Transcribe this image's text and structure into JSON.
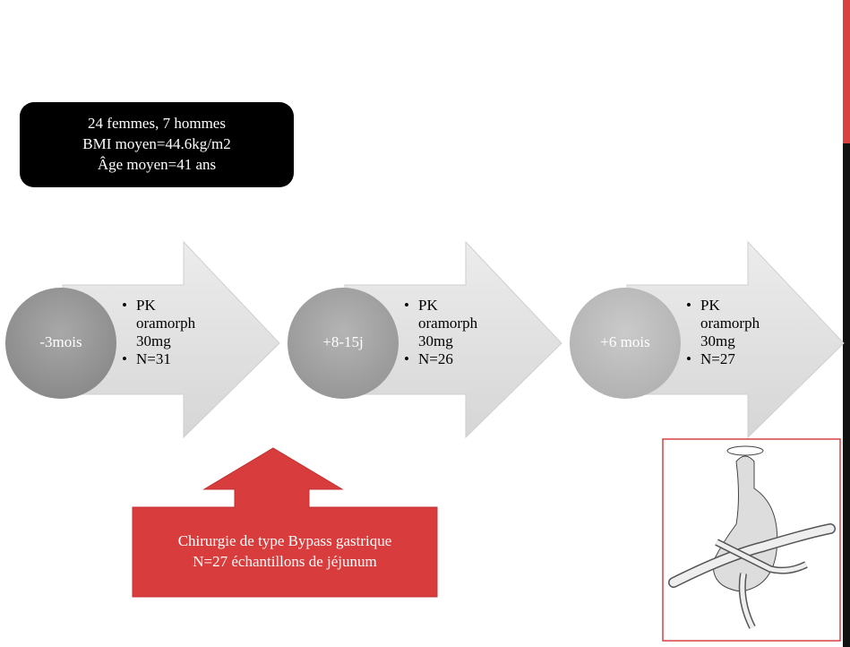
{
  "info_box": {
    "lines": [
      "24 femmes, 7 hommes",
      "BMI moyen=44.6kg/m2",
      "Âge moyen=41 ans"
    ]
  },
  "steps": [
    {
      "label": "-3mois",
      "bullets": [
        "PK oramorph 30mg",
        "N=31"
      ]
    },
    {
      "label": "+8-15j",
      "bullets": [
        "PK oramorph 30mg",
        "N=26"
      ]
    },
    {
      "label": "+6 mois",
      "bullets": [
        "PK oramorph 30mg",
        "N=27"
      ]
    }
  ],
  "surgery_box": {
    "lines": [
      "Chirurgie de type Bypass gastrique",
      "N=27 échantillons de jéjunum"
    ]
  }
}
